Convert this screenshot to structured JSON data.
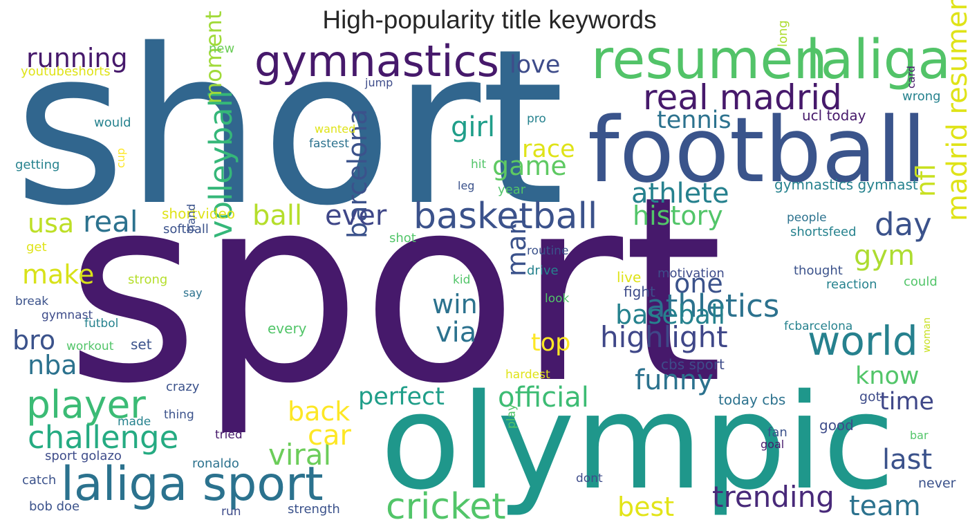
{
  "title": "High-popularity title keywords",
  "words": [
    {
      "text": "sport",
      "color": "#46196b"
    },
    {
      "text": "short",
      "color": "#31668e"
    },
    {
      "text": "olympic",
      "color": "#1f978b"
    },
    {
      "text": "football",
      "color": "#3a548b"
    },
    {
      "text": "resumen",
      "color": "#52c368"
    },
    {
      "text": "laliga",
      "color": "#52c368"
    },
    {
      "text": "gymnastics",
      "color": "#46196b"
    },
    {
      "text": "real madrid",
      "color": "#46196b"
    },
    {
      "text": "laliga sport",
      "color": "#2b728e"
    },
    {
      "text": "basketball",
      "color": "#3b528b"
    },
    {
      "text": "world",
      "color": "#26818e"
    },
    {
      "text": "player",
      "color": "#3bbb75"
    },
    {
      "text": "cricket",
      "color": "#52c569"
    },
    {
      "text": "challenge",
      "color": "#25ab82"
    },
    {
      "text": "madrid resumen",
      "color": "#dfe318"
    },
    {
      "text": "athletics",
      "color": "#2c728e"
    },
    {
      "text": "highlight",
      "color": "#3f4788"
    },
    {
      "text": "volleyball",
      "color": "#35b779"
    },
    {
      "text": "official",
      "color": "#3dbc74"
    },
    {
      "text": "trending",
      "color": "#482979"
    },
    {
      "text": "day",
      "color": "#3b528b"
    },
    {
      "text": "funny",
      "color": "#2c728e"
    },
    {
      "text": "baseball",
      "color": "#26828e"
    },
    {
      "text": "barcelona",
      "color": "#3b528b"
    },
    {
      "text": "perfect",
      "color": "#1f9e89"
    },
    {
      "text": "team",
      "color": "#2c728e"
    },
    {
      "text": "running",
      "color": "#46196b"
    },
    {
      "text": "real",
      "color": "#2c728e"
    },
    {
      "text": "ever",
      "color": "#3f4788"
    },
    {
      "text": "viral",
      "color": "#6ccd5a"
    },
    {
      "text": "via",
      "color": "#2c728e"
    },
    {
      "text": "best",
      "color": "#e2e418"
    },
    {
      "text": "athlete",
      "color": "#26818e"
    },
    {
      "text": "one",
      "color": "#3b528b"
    },
    {
      "text": "history",
      "color": "#52c569"
    },
    {
      "text": "game",
      "color": "#5ec962"
    },
    {
      "text": "girl",
      "color": "#1f9e89"
    },
    {
      "text": "win",
      "color": "#2c728e"
    },
    {
      "text": "back",
      "color": "#fde725"
    },
    {
      "text": "last",
      "color": "#3b528b"
    },
    {
      "text": "ball",
      "color": "#b5de2b"
    },
    {
      "text": "gym",
      "color": "#addc30"
    },
    {
      "text": "know",
      "color": "#52c569"
    },
    {
      "text": "moment",
      "color": "#a0da39"
    },
    {
      "text": "car",
      "color": "#fde725"
    },
    {
      "text": "tennis",
      "color": "#2c728e"
    },
    {
      "text": "love",
      "color": "#3e4c8a"
    },
    {
      "text": "nfl",
      "color": "#c8e020"
    },
    {
      "text": "nba",
      "color": "#2c728e"
    },
    {
      "text": "usa",
      "color": "#bddf26"
    },
    {
      "text": "make",
      "color": "#d8e219"
    },
    {
      "text": "bro",
      "color": "#3b528b"
    },
    {
      "text": "man",
      "color": "#3b528b"
    },
    {
      "text": "time",
      "color": "#3f4788"
    },
    {
      "text": "race",
      "color": "#dfe318"
    },
    {
      "text": "top",
      "color": "#fde725"
    },
    {
      "text": "gymnastics gymnast",
      "color": "#26828e"
    },
    {
      "text": "ucl today",
      "color": "#46196b"
    },
    {
      "text": "new",
      "color": "#6ccd5a"
    },
    {
      "text": "youtubeshorts",
      "color": "#dfe318"
    },
    {
      "text": "jump",
      "color": "#3e4c8a"
    },
    {
      "text": "would",
      "color": "#26828e"
    },
    {
      "text": "wanted",
      "color": "#dfe318"
    },
    {
      "text": "fastest",
      "color": "#2c728e"
    },
    {
      "text": "pro",
      "color": "#26828e"
    },
    {
      "text": "long",
      "color": "#addc30"
    },
    {
      "text": "wrong",
      "color": "#26828e"
    },
    {
      "text": "card",
      "color": "#46196b"
    },
    {
      "text": "getting",
      "color": "#26828e"
    },
    {
      "text": "cup",
      "color": "#fde725"
    },
    {
      "text": "hit",
      "color": "#52c569"
    },
    {
      "text": "leg",
      "color": "#3b528b"
    },
    {
      "text": "year",
      "color": "#52c569"
    },
    {
      "text": "shortvideo",
      "color": "#dfe318"
    },
    {
      "text": "softball",
      "color": "#3b528b"
    },
    {
      "text": "people",
      "color": "#2c728e"
    },
    {
      "text": "shortsfeed",
      "color": "#26828e"
    },
    {
      "text": "get",
      "color": "#dfe318"
    },
    {
      "text": "shot",
      "color": "#52c569"
    },
    {
      "text": "routine",
      "color": "#3b528b"
    },
    {
      "text": "drive",
      "color": "#26828e"
    },
    {
      "text": "hand",
      "color": "#3b528b"
    },
    {
      "text": "thought",
      "color": "#3b528b"
    },
    {
      "text": "motivation",
      "color": "#3e4c8a"
    },
    {
      "text": "strong",
      "color": "#b5de2b"
    },
    {
      "text": "say",
      "color": "#2c728e"
    },
    {
      "text": "kid",
      "color": "#52c569"
    },
    {
      "text": "live",
      "color": "#dfe318"
    },
    {
      "text": "reaction",
      "color": "#26828e"
    },
    {
      "text": "could",
      "color": "#52c569"
    },
    {
      "text": "break",
      "color": "#3b528b"
    },
    {
      "text": "fight",
      "color": "#3e4c8a"
    },
    {
      "text": "look",
      "color": "#52c569"
    },
    {
      "text": "gymnast",
      "color": "#3e4c8a"
    },
    {
      "text": "futbol",
      "color": "#26828e"
    },
    {
      "text": "every",
      "color": "#52c569"
    },
    {
      "text": "fcbarcelona",
      "color": "#26828e"
    },
    {
      "text": "workout",
      "color": "#52c569"
    },
    {
      "text": "set",
      "color": "#3b528b"
    },
    {
      "text": "woman",
      "color": "#c8e020"
    },
    {
      "text": "cbs sport",
      "color": "#3e4c8a"
    },
    {
      "text": "hardest",
      "color": "#dfe318"
    },
    {
      "text": "crazy",
      "color": "#3b528b"
    },
    {
      "text": "today cbs",
      "color": "#2c728e"
    },
    {
      "text": "got",
      "color": "#3e4c8a"
    },
    {
      "text": "thing",
      "color": "#3b528b"
    },
    {
      "text": "made",
      "color": "#26828e"
    },
    {
      "text": "good",
      "color": "#3e4c8a"
    },
    {
      "text": "tried",
      "color": "#46196b"
    },
    {
      "text": "fan",
      "color": "#3b528b"
    },
    {
      "text": "goal",
      "color": "#46196b"
    },
    {
      "text": "play",
      "color": "#52c569"
    },
    {
      "text": "bar",
      "color": "#52c569"
    },
    {
      "text": "sport golazo",
      "color": "#3e4c8a"
    },
    {
      "text": "ronaldo",
      "color": "#2c728e"
    },
    {
      "text": "catch",
      "color": "#3b528b"
    },
    {
      "text": "dont",
      "color": "#3e4c8a"
    },
    {
      "text": "never",
      "color": "#3b528b"
    },
    {
      "text": "bob doe",
      "color": "#3b528b"
    },
    {
      "text": "run",
      "color": "#3e4c8a"
    },
    {
      "text": "strength",
      "color": "#3b528b"
    }
  ]
}
